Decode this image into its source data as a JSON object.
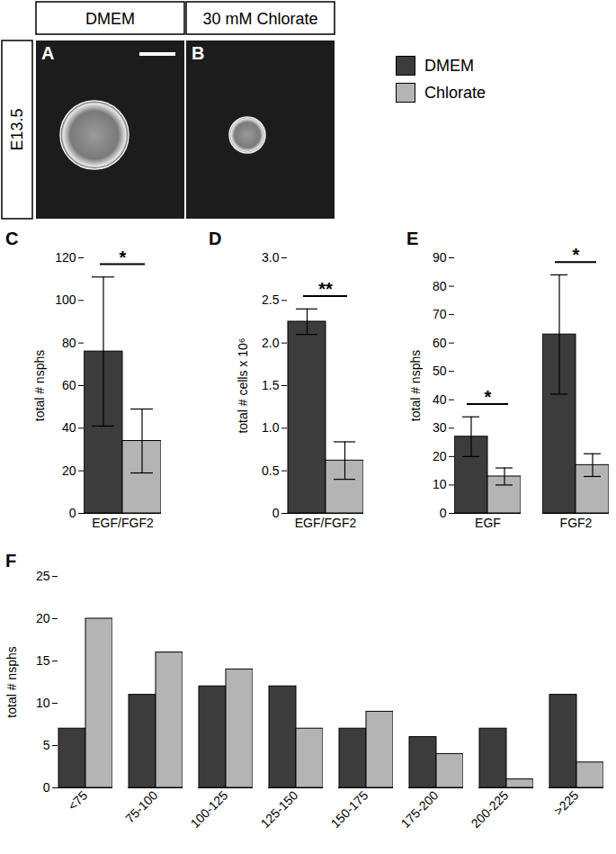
{
  "images": {
    "row_label": "E13.5",
    "panels": [
      {
        "panel": "A",
        "header": "DMEM"
      },
      {
        "panel": "B",
        "header": "30 mM Chlorate"
      }
    ]
  },
  "chart_data": [
    {
      "panel": "C",
      "type": "bar",
      "categories": [
        "EGF/FGF2"
      ],
      "ylabel": "total # nsphs",
      "ylim": [
        0,
        120
      ],
      "yticks": [
        0,
        20,
        40,
        60,
        80,
        100,
        120
      ],
      "series": [
        {
          "name": "DMEM",
          "color": "#3c3c3c",
          "values": [
            76
          ],
          "errors": [
            35
          ]
        },
        {
          "name": "Chlorate",
          "color": "#b4b4b4",
          "values": [
            34
          ],
          "errors": [
            15
          ]
        }
      ],
      "annotations": [
        {
          "category": "EGF/FGF2",
          "text": "*"
        }
      ]
    },
    {
      "panel": "D",
      "type": "bar",
      "categories": [
        "EGF/FGF2"
      ],
      "ylabel": "total # cells x 10⁶",
      "ylim": [
        0,
        3
      ],
      "yticks": [
        0,
        0.5,
        {
          "value": 1,
          "label": "1.0"
        },
        1.5,
        {
          "value": 2,
          "label": "2.0"
        },
        2.5,
        {
          "value": 3,
          "label": "3.0"
        }
      ],
      "series": [
        {
          "name": "DMEM",
          "color": "#3c3c3c",
          "values": [
            2.25
          ],
          "errors": [
            0.15
          ]
        },
        {
          "name": "Chlorate",
          "color": "#b4b4b4",
          "values": [
            0.62
          ],
          "errors": [
            0.22
          ]
        }
      ],
      "annotations": [
        {
          "category": "EGF/FGF2",
          "text": "**"
        }
      ]
    },
    {
      "panel": "E",
      "type": "bar",
      "categories": [
        "EGF",
        "FGF2"
      ],
      "ylabel": "total # nsphs",
      "ylim": [
        0,
        90
      ],
      "yticks": [
        0,
        10,
        20,
        30,
        40,
        50,
        60,
        70,
        80,
        90
      ],
      "series": [
        {
          "name": "DMEM",
          "color": "#3c3c3c",
          "values": [
            27,
            63
          ],
          "errors": [
            7,
            21
          ]
        },
        {
          "name": "Chlorate",
          "color": "#b4b4b4",
          "values": [
            13,
            17
          ],
          "errors": [
            3,
            4
          ]
        }
      ],
      "annotations": [
        {
          "category": "EGF",
          "text": "*"
        },
        {
          "category": "FGF2",
          "text": "*"
        }
      ]
    },
    {
      "panel": "F",
      "type": "bar",
      "categories": [
        "<75",
        "75-100",
        "100-125",
        "125-150",
        "150-175",
        "175-200",
        "200-225",
        ">225"
      ],
      "ylabel": "total # nsphs",
      "ylim": [
        0,
        25
      ],
      "yticks": [
        0,
        5,
        10,
        15,
        20,
        25
      ],
      "series": [
        {
          "name": "DMEM",
          "color": "#3c3c3c",
          "values": [
            7,
            11,
            12,
            12,
            7,
            6,
            7,
            11
          ]
        },
        {
          "name": "Chlorate",
          "color": "#b4b4b4",
          "values": [
            20,
            16,
            14,
            7,
            9,
            4,
            1,
            3
          ]
        }
      ]
    }
  ]
}
